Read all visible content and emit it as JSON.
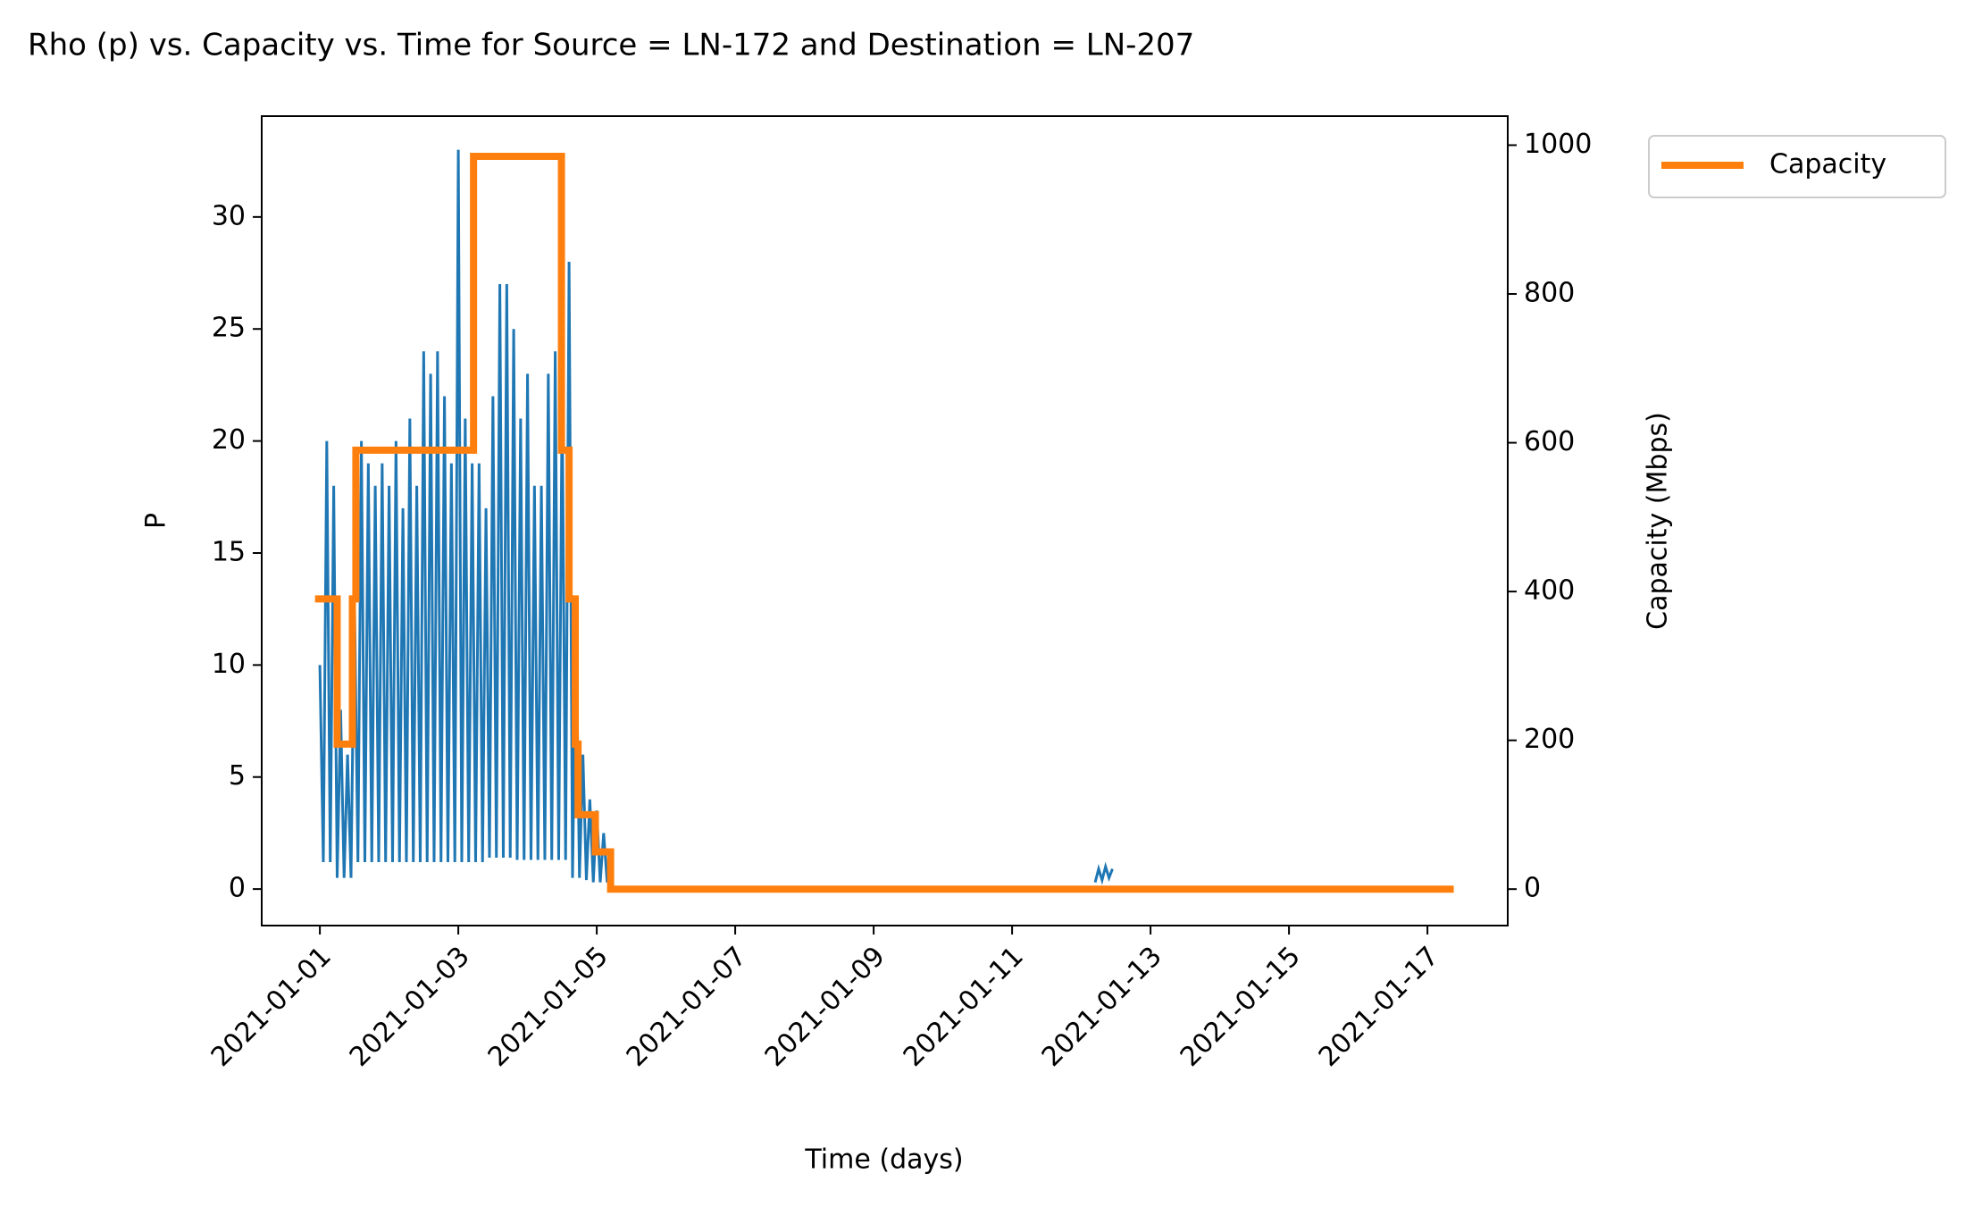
{
  "chart_data": {
    "type": "line",
    "drawstyle_y2": "steps-post",
    "title": "Rho (p) vs. Capacity vs. Time for Source = LN-172 and Destination = LN-207",
    "xlabel": "Time (days)",
    "ylabel": "P",
    "y2label": "Capacity (Mbps)",
    "xlim": [
      -0.84,
      17.16
    ],
    "xticks": [
      {
        "value": 0,
        "label": "2021-01-01"
      },
      {
        "value": 2,
        "label": "2021-01-03"
      },
      {
        "value": 4,
        "label": "2021-01-05"
      },
      {
        "value": 6,
        "label": "2021-01-07"
      },
      {
        "value": 8,
        "label": "2021-01-09"
      },
      {
        "value": 10,
        "label": "2021-01-11"
      },
      {
        "value": 12,
        "label": "2021-01-13"
      },
      {
        "value": 14,
        "label": "2021-01-15"
      },
      {
        "value": 16,
        "label": "2021-01-17"
      }
    ],
    "ylim": [
      -1.63,
      34.5
    ],
    "yticks": [
      0,
      5,
      10,
      15,
      20,
      25,
      30
    ],
    "y2lim": [
      -49,
      1039
    ],
    "y2ticks": [
      0,
      200,
      400,
      600,
      800,
      1000
    ],
    "legend": "outside upper right",
    "series": [
      {
        "color": "#1f77b4",
        "x": [
          0,
          0.05,
          0.1,
          0.15,
          0.2,
          0.25,
          0.3,
          0.35,
          0.4,
          0.45,
          0.5,
          0.55,
          0.6,
          0.65,
          0.7,
          0.75,
          0.8,
          0.85,
          0.9,
          0.95,
          1.0,
          1.05,
          1.1,
          1.15,
          1.2,
          1.25,
          1.3,
          1.35,
          1.4,
          1.45,
          1.5,
          1.55,
          1.6,
          1.65,
          1.7,
          1.75,
          1.8,
          1.85,
          1.9,
          1.95,
          2.0,
          2.05,
          2.1,
          2.15,
          2.2,
          2.25,
          2.3,
          2.35,
          2.4,
          2.45,
          2.5,
          2.55,
          2.6,
          2.65,
          2.7,
          2.75,
          2.8,
          2.85,
          2.9,
          2.95,
          3.0,
          3.05,
          3.1,
          3.15,
          3.2,
          3.25,
          3.3,
          3.35,
          3.4,
          3.45,
          3.5,
          3.55,
          3.6,
          3.65,
          3.7,
          3.75,
          3.8,
          3.85,
          3.9,
          3.95,
          4.0,
          4.05,
          4.1,
          4.15,
          4.2,
          7,
          11.2,
          11.25,
          11.3,
          11.35,
          11.4,
          11.45
        ],
        "values": [
          10,
          1.2,
          20,
          1.2,
          18,
          0.5,
          8,
          0.5,
          6,
          0.5,
          13,
          1.2,
          20,
          1.2,
          19,
          1.2,
          18,
          1.2,
          19,
          1.2,
          18,
          1.2,
          20,
          1.2,
          17,
          1.2,
          21,
          1.2,
          18,
          1.2,
          24,
          1.2,
          23,
          1.2,
          24,
          1.2,
          22,
          1.2,
          19,
          1.2,
          33,
          1.2,
          21,
          1.2,
          19,
          1.2,
          19,
          1.2,
          17,
          1.4,
          22,
          1.4,
          27,
          1.4,
          27,
          1.4,
          25,
          1.3,
          21,
          1.3,
          23,
          1.3,
          18,
          1.3,
          18,
          1.3,
          23,
          1.3,
          24,
          1.3,
          22,
          1.3,
          28,
          0.5,
          12,
          0.5,
          6,
          0.4,
          4,
          0.3,
          3.5,
          0.3,
          2.5,
          0.3,
          1.5,
          null,
          0.3,
          0.9,
          0.4,
          1.0,
          0.5,
          0.9
        ]
      },
      {
        "name": "Capacity",
        "color": "#ff7f0e",
        "axis": "y2",
        "x": [
          -0.07,
          0.25,
          0.47,
          0.52,
          2.22,
          3.49,
          3.6,
          3.69,
          3.73,
          3.98,
          4.2,
          16.38
        ],
        "values": [
          390,
          195,
          390,
          590,
          985,
          590,
          390,
          195,
          100,
          50,
          0,
          0
        ]
      }
    ]
  }
}
